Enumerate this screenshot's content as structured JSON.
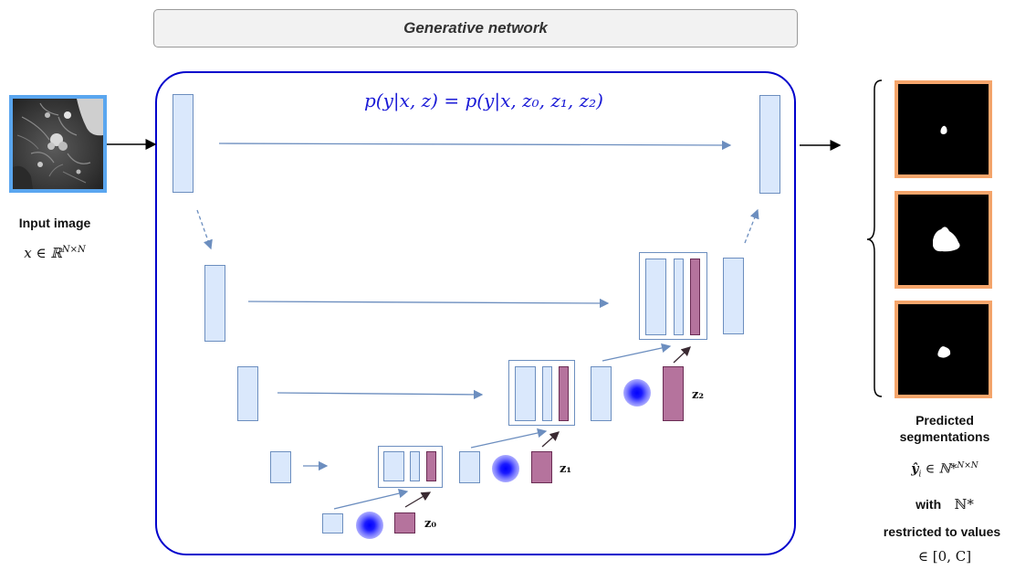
{
  "header": {
    "title": "Generative network"
  },
  "network": {
    "formula": "p(y|x, z) = p(y|x, z₀, z₁, z₂)",
    "latents": {
      "z0": "z₀",
      "z1": "z₁",
      "z2": "z₂"
    }
  },
  "input": {
    "label": "Input image",
    "math": "x ∈ ℝ",
    "math_sup": "N×N"
  },
  "output": {
    "label_line1": "Predicted",
    "label_line2": "segmentations",
    "math": "ŷ",
    "math_sub": "i",
    "math_mid": " ∈ ℕ*",
    "math_sup": "N×N",
    "with_label": "with",
    "with_set": "ℕ*",
    "restricted_label": "restricted to values",
    "range": "∈ [0, C]"
  },
  "colors": {
    "frame": "#0000cc",
    "feature_fill": "#dae8fc",
    "feature_stroke": "#6c8ebf",
    "latent_fill": "#b5739d",
    "input_border": "#5aa6ef",
    "output_border": "#f5a56b"
  }
}
